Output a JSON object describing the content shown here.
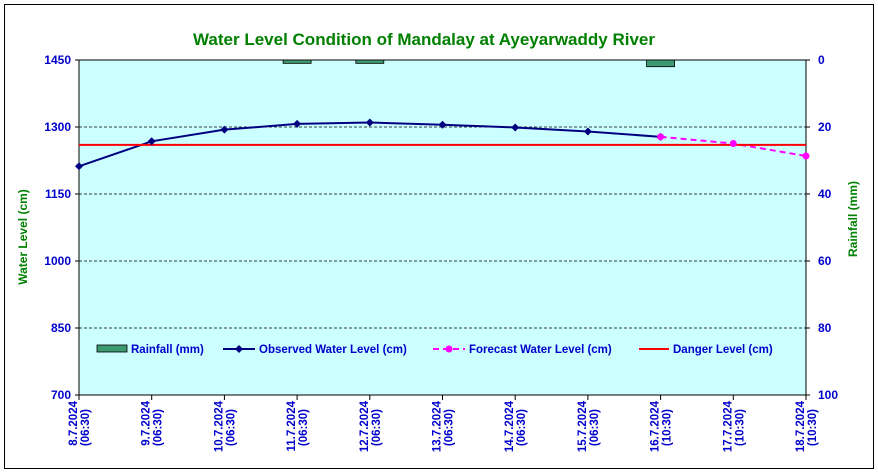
{
  "chart_data": {
    "type": "line",
    "title": "Water Level Condition of Mandalay at Ayeyarwaddy River",
    "ylabel": "Water Level (cm)",
    "y2label": "Rainfall (mm)",
    "ylim": [
      700,
      1450
    ],
    "y2lim": [
      0,
      100
    ],
    "y2_inverted": true,
    "yticks": [
      700,
      850,
      1000,
      1150,
      1300,
      1450
    ],
    "y2ticks": [
      0,
      20,
      40,
      60,
      80,
      100
    ],
    "categories": [
      {
        "date": "8.7.2024",
        "time": "(06:30)"
      },
      {
        "date": "9.7.2024",
        "time": "(06:30)"
      },
      {
        "date": "10.7.2024",
        "time": "(06:30)"
      },
      {
        "date": "11.7.2024",
        "time": "(06:30)"
      },
      {
        "date": "12.7.2024",
        "time": "(06:30)"
      },
      {
        "date": "13.7.2024",
        "time": "(06:30)"
      },
      {
        "date": "14.7.2024",
        "time": "(06:30)"
      },
      {
        "date": "15.7.2024",
        "time": "(06:30)"
      },
      {
        "date": "16.7.2024",
        "time": "(10:30)"
      },
      {
        "date": "17.7.2024",
        "time": "(10:30)"
      },
      {
        "date": "18.7.2024",
        "time": "(10:30)"
      }
    ],
    "series": [
      {
        "name": "Rainfall (mm)",
        "kind": "bar",
        "axis": "right",
        "color": "#3d9970",
        "values": [
          0,
          0,
          0,
          1,
          1,
          0,
          0,
          0,
          2,
          0,
          0
        ]
      },
      {
        "name": "Observed Water Level (cm)",
        "kind": "line",
        "axis": "left",
        "color": "#000080",
        "marker": "diamond",
        "values": [
          1212,
          1268,
          1294,
          1307,
          1310,
          1305,
          1299,
          1290,
          1278,
          null,
          null
        ]
      },
      {
        "name": "Forecast Water Level (cm)",
        "kind": "line",
        "axis": "left",
        "color": "#ff00ff",
        "marker": "circle",
        "dashed": true,
        "values": [
          null,
          null,
          null,
          null,
          null,
          null,
          null,
          null,
          1278,
          1263,
          1235
        ]
      },
      {
        "name": "Danger Level (cm)",
        "kind": "hline",
        "axis": "left",
        "color": "#ff0000",
        "value": 1260
      }
    ],
    "colors": {
      "title": "#008000",
      "axis_text": "#0000cc",
      "axis_label": "#008000",
      "plot_bg": "#ccffff",
      "grid": "#000000"
    }
  }
}
